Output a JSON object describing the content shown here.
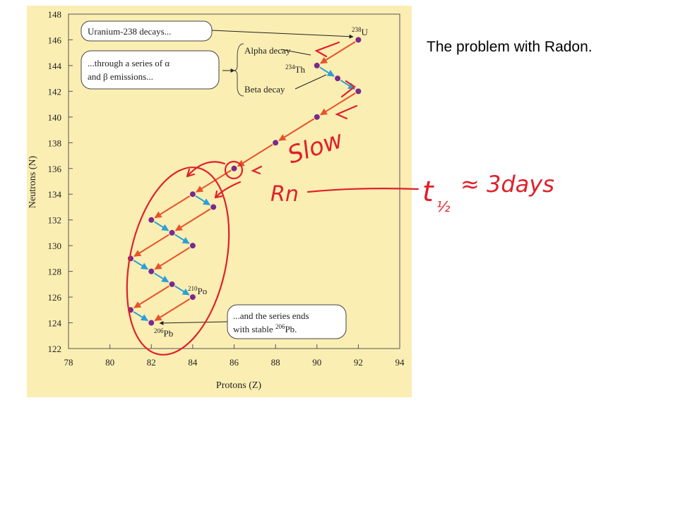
{
  "slide_title": "The problem with Radon.",
  "chart_data": {
    "type": "scatter",
    "x_label": "Protons (Z)",
    "y_label": "Neutrons (N)",
    "x": [
      92,
      90,
      91,
      92,
      90,
      88,
      86,
      84,
      85,
      82,
      83,
      84,
      81,
      82,
      83,
      84,
      81,
      82
    ],
    "values": [
      146,
      144,
      143,
      142,
      140,
      138,
      136,
      134,
      133,
      132,
      131,
      130,
      129,
      128,
      127,
      126,
      125,
      124
    ],
    "color": "#7a2a8c",
    "alpha_color": "#e8522a",
    "beta_color": "#2a9fd8",
    "xlim": [
      78,
      94
    ],
    "xticks": [
      78,
      80,
      82,
      84,
      86,
      88,
      90,
      92,
      94
    ],
    "ylim": [
      122,
      148
    ],
    "yticks": [
      122,
      124,
      126,
      128,
      130,
      132,
      134,
      136,
      138,
      140,
      142,
      144,
      146,
      148
    ],
    "point_labels": [
      {
        "mass": "238",
        "symbol": "U"
      },
      {
        "mass": "234",
        "symbol": "Th"
      },
      {
        "mass": "210",
        "symbol": "Po"
      },
      {
        "mass": "206",
        "symbol": "Pb"
      }
    ],
    "callouts": {
      "start": "Uranium-238 decays...",
      "series_1": "...through a series of α",
      "series_2": "and β emissions...",
      "alpha": "Alpha decay",
      "beta": "Beta decay",
      "end_1": "...and the series ends",
      "end_2": "with stable",
      "end_mass": "206",
      "end_symbol": "Pb."
    },
    "annotations": {
      "slow": "Slow",
      "rn": "Rn",
      "t": "t",
      "half": "½",
      "approx": "≈ 3days"
    }
  }
}
